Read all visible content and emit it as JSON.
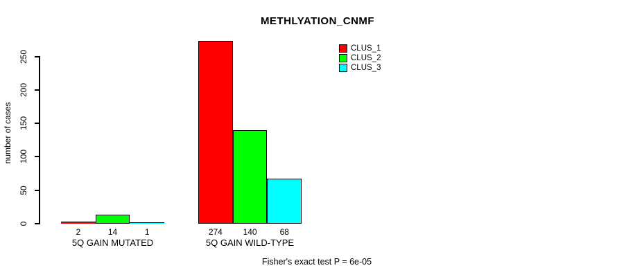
{
  "chart_data": {
    "type": "bar",
    "title": "METHLYATION_CNMF",
    "ylabel": "number of cases",
    "xlabel": "",
    "ylim": [
      0,
      250
    ],
    "yticks": [
      0,
      50,
      100,
      150,
      200,
      250
    ],
    "grid": false,
    "legend_position": "top-right",
    "categories": [
      "5Q GAIN MUTATED",
      "5Q GAIN WILD-TYPE"
    ],
    "series": [
      {
        "name": "CLUS_1",
        "color": "#ff0000",
        "values": [
          2,
          274
        ]
      },
      {
        "name": "CLUS_2",
        "color": "#00ff00",
        "values": [
          14,
          140
        ]
      },
      {
        "name": "CLUS_3",
        "color": "#00ffff",
        "values": [
          1,
          68
        ]
      }
    ],
    "bar_value_labels": [
      [
        "2",
        "14",
        "1"
      ],
      [
        "274",
        "140",
        "68"
      ]
    ],
    "annotation": "Fisher's exact test P = 6e-05",
    "bar_border_color": "#000000",
    "axis_color": "#000000"
  }
}
